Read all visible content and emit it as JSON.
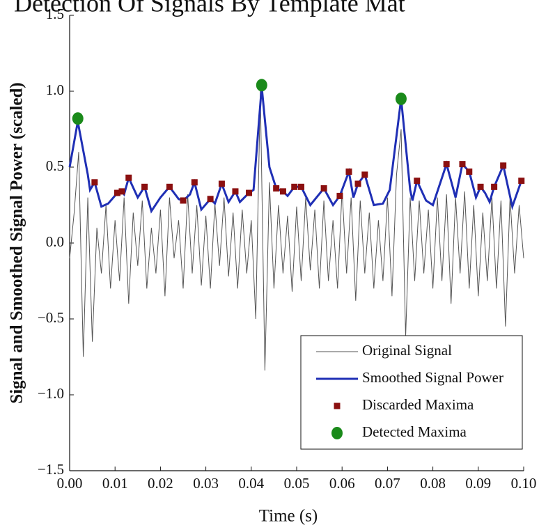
{
  "chart_data": {
    "type": "line",
    "title": "Detection Of Signals By Template Mat",
    "x_label": "Time (s)",
    "y_label": "Signal and Smoothed Signal Power (scaled)",
    "xlim": [
      0,
      0.1
    ],
    "ylim": [
      -1.5,
      1.5
    ],
    "xticks": [
      {
        "value": 0,
        "label": "0.00"
      },
      {
        "value": 0.01,
        "label": "0.01"
      },
      {
        "value": 0.02,
        "label": "0.02"
      },
      {
        "value": 0.03,
        "label": "0.03"
      },
      {
        "value": 0.04,
        "label": "0.04"
      },
      {
        "value": 0.05,
        "label": "0.05"
      },
      {
        "value": 0.06,
        "label": "0.06"
      },
      {
        "value": 0.07,
        "label": "0.07"
      },
      {
        "value": 0.08,
        "label": "0.08"
      },
      {
        "value": 0.09,
        "label": "0.09"
      },
      {
        "value": 0.1,
        "label": "0.10"
      }
    ],
    "yticks": [
      {
        "value": -1.5,
        "label": "−1.5"
      },
      {
        "value": -1,
        "label": "−1.0"
      },
      {
        "value": -0.5,
        "label": "−0.5"
      },
      {
        "value": 0,
        "label": "0.0"
      },
      {
        "value": 0.5,
        "label": "0.5"
      },
      {
        "value": 1,
        "label": "1.0"
      },
      {
        "value": 1.5,
        "label": "1.5"
      }
    ],
    "legend": "lower right",
    "series": [
      {
        "name": "Original Signal",
        "type": "line",
        "color": "#555555",
        "x": [
          0,
          0.001,
          0.002,
          0.003,
          0.004,
          0.005,
          0.006,
          0.007,
          0.008,
          0.009,
          0.01,
          0.011,
          0.012,
          0.013,
          0.014,
          0.015,
          0.016,
          0.017,
          0.018,
          0.019,
          0.02,
          0.021,
          0.022,
          0.023,
          0.024,
          0.025,
          0.026,
          0.027,
          0.028,
          0.029,
          0.03,
          0.031,
          0.032,
          0.033,
          0.034,
          0.035,
          0.036,
          0.037,
          0.038,
          0.039,
          0.04,
          0.041,
          0.042,
          0.043,
          0.044,
          0.045,
          0.046,
          0.047,
          0.048,
          0.049,
          0.05,
          0.051,
          0.052,
          0.053,
          0.054,
          0.055,
          0.056,
          0.057,
          0.058,
          0.059,
          0.06,
          0.061,
          0.062,
          0.063,
          0.064,
          0.065,
          0.066,
          0.067,
          0.068,
          0.069,
          0.07,
          0.071,
          0.072,
          0.073,
          0.074,
          0.075,
          0.076,
          0.077,
          0.078,
          0.079,
          0.08,
          0.081,
          0.082,
          0.083,
          0.084,
          0.085,
          0.086,
          0.087,
          0.088,
          0.089,
          0.09,
          0.091,
          0.092,
          0.093,
          0.094,
          0.095,
          0.096,
          0.097,
          0.098,
          0.099,
          0.1
        ],
        "values": [
          -0.1,
          0.2,
          0.6,
          -0.75,
          0.3,
          -0.65,
          0.1,
          -0.2,
          0.25,
          -0.3,
          0.15,
          -0.25,
          0.3,
          -0.4,
          0.2,
          -0.15,
          0.28,
          -0.3,
          0.1,
          -0.2,
          0.22,
          -0.35,
          0.3,
          -0.1,
          0.15,
          -0.3,
          0.32,
          -0.2,
          0.25,
          -0.28,
          0.18,
          -0.3,
          0.26,
          -0.15,
          0.3,
          -0.22,
          0.2,
          -0.3,
          0.22,
          -0.2,
          0.15,
          -0.5,
          1.0,
          -0.84,
          0.4,
          -0.3,
          0.25,
          -0.2,
          0.18,
          -0.32,
          0.24,
          -0.25,
          0.3,
          -0.18,
          0.22,
          -0.3,
          0.28,
          -0.25,
          0.15,
          -0.3,
          0.35,
          -0.2,
          0.3,
          -0.38,
          0.28,
          -0.2,
          0.2,
          -0.3,
          0.15,
          -0.25,
          0.3,
          -0.35,
          0.45,
          0.75,
          -0.62,
          0.3,
          -0.25,
          0.28,
          -0.2,
          0.22,
          -0.3,
          0.3,
          -0.25,
          0.32,
          -0.4,
          0.3,
          -0.2,
          0.34,
          -0.3,
          0.25,
          -0.35,
          0.2,
          -0.25,
          0.3,
          -0.3,
          0.28,
          -0.55,
          0.3,
          -0.2,
          0.25,
          -0.1
        ]
      },
      {
        "name": "Smoothed Signal Power",
        "type": "line",
        "color": "#1f2fb5",
        "x": [
          0,
          0.0018,
          0.004,
          0.0045,
          0.0055,
          0.007,
          0.0085,
          0.0105,
          0.0115,
          0.012,
          0.013,
          0.015,
          0.0165,
          0.018,
          0.02,
          0.022,
          0.024,
          0.025,
          0.0265,
          0.0275,
          0.029,
          0.031,
          0.032,
          0.0335,
          0.035,
          0.0365,
          0.0375,
          0.0395,
          0.0405,
          0.0423,
          0.044,
          0.0455,
          0.047,
          0.048,
          0.0495,
          0.051,
          0.053,
          0.056,
          0.058,
          0.0595,
          0.0615,
          0.0625,
          0.0635,
          0.065,
          0.067,
          0.069,
          0.0705,
          0.073,
          0.075,
          0.0755,
          0.0765,
          0.0785,
          0.08,
          0.083,
          0.085,
          0.0865,
          0.088,
          0.0895,
          0.0905,
          0.0915,
          0.0925,
          0.0935,
          0.0955,
          0.0975,
          0.0995,
          0.1
        ],
        "values": [
          0.5,
          0.8,
          0.45,
          0.35,
          0.4,
          0.24,
          0.26,
          0.33,
          0.34,
          0.32,
          0.43,
          0.3,
          0.37,
          0.21,
          0.3,
          0.37,
          0.29,
          0.28,
          0.32,
          0.4,
          0.22,
          0.29,
          0.26,
          0.39,
          0.27,
          0.34,
          0.27,
          0.33,
          0.35,
          1.03,
          0.5,
          0.36,
          0.34,
          0.31,
          0.37,
          0.37,
          0.25,
          0.36,
          0.25,
          0.31,
          0.47,
          0.3,
          0.39,
          0.45,
          0.25,
          0.26,
          0.35,
          0.95,
          0.35,
          0.28,
          0.41,
          0.28,
          0.25,
          0.52,
          0.3,
          0.52,
          0.47,
          0.3,
          0.37,
          0.33,
          0.27,
          0.37,
          0.51,
          0.24,
          0.41,
          0.4
        ]
      },
      {
        "name": "Discarded Maxima",
        "type": "scatter",
        "marker": "square",
        "color": "#8b1010",
        "x": [
          0.0055,
          0.0105,
          0.0115,
          0.013,
          0.0165,
          0.022,
          0.025,
          0.0275,
          0.031,
          0.0335,
          0.0365,
          0.0395,
          0.0455,
          0.047,
          0.0495,
          0.051,
          0.056,
          0.0595,
          0.0615,
          0.0635,
          0.065,
          0.0765,
          0.083,
          0.0865,
          0.088,
          0.0905,
          0.0935,
          0.0955,
          0.0995
        ],
        "values": [
          0.4,
          0.33,
          0.34,
          0.43,
          0.37,
          0.37,
          0.28,
          0.4,
          0.29,
          0.39,
          0.34,
          0.33,
          0.36,
          0.34,
          0.37,
          0.37,
          0.36,
          0.31,
          0.47,
          0.39,
          0.45,
          0.41,
          0.52,
          0.52,
          0.47,
          0.37,
          0.37,
          0.51,
          0.41
        ]
      },
      {
        "name": "Detected Maxima",
        "type": "scatter",
        "marker": "circle",
        "color": "#1a8a1a",
        "x": [
          0.0018,
          0.0423,
          0.073
        ],
        "values": [
          0.82,
          1.04,
          0.95
        ]
      }
    ]
  }
}
